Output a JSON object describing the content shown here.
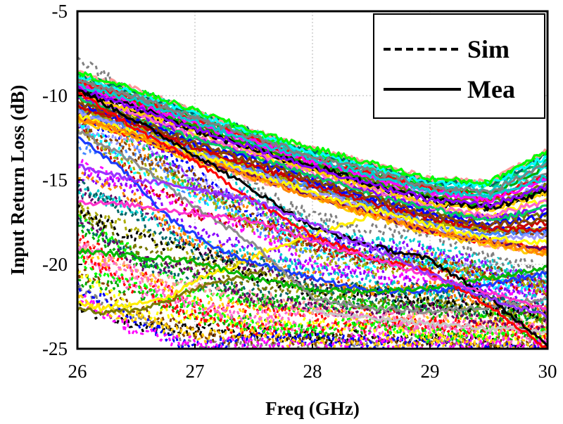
{
  "chart_data": {
    "type": "line",
    "title": "",
    "xlabel": "Freq (GHz)",
    "ylabel": "Input Return Loss (dB)",
    "xlim": [
      26,
      30
    ],
    "ylim": [
      -25,
      -5
    ],
    "x_ticks": [
      26,
      27,
      28,
      29,
      30
    ],
    "y_ticks": [
      -5,
      -10,
      -15,
      -20,
      -25
    ],
    "x_tick_labels": [
      "26",
      "27",
      "28",
      "29",
      "30"
    ],
    "y_tick_labels": [
      "-5",
      "-10",
      "-15",
      "-20",
      "-25"
    ],
    "grid": true,
    "legend": {
      "position": "top-right",
      "entries": [
        {
          "label": "Sim",
          "style": "dashed"
        },
        {
          "label": "Mea",
          "style": "solid"
        }
      ]
    },
    "colors": [
      "#ff0000",
      "#0000ff",
      "#00aa00",
      "#ff00ff",
      "#00cccc",
      "#ffcc00",
      "#000000",
      "#808080",
      "#8800ff",
      "#ff8800",
      "#00ff00",
      "#884400",
      "#ff66cc",
      "#006666",
      "#aaaa00",
      "#660066",
      "#4488ff",
      "#cc0000",
      "#00cc66",
      "#ff9999",
      "#9999ff",
      "#777700",
      "#00ffff",
      "#ffff00"
    ],
    "series": [
      {
        "name": "Mea upper band",
        "style": "solid",
        "count": 44,
        "x": [
          26,
          26.5,
          27,
          27.5,
          28,
          28.5,
          29,
          29.5,
          30
        ],
        "values_range_low": [
          -11.5,
          -12.6,
          -13.9,
          -15.0,
          -16.1,
          -17.2,
          -18.2,
          -19.0,
          -19.6
        ],
        "values_range_high": [
          -8.6,
          -9.6,
          -10.8,
          -12.0,
          -13.1,
          -14.0,
          -14.9,
          -15.1,
          -13.2
        ]
      },
      {
        "name": "Mea yellow",
        "style": "solid",
        "x": [
          26,
          26.2,
          26.5,
          26.8,
          27,
          27.3,
          27.6,
          27.9,
          28.2,
          28.5
        ],
        "values": [
          -22.3,
          -22.6,
          -22.3,
          -21.9,
          -20.9,
          -20.2,
          -19.2,
          -18.5,
          -17.8,
          -17.1
        ]
      },
      {
        "name": "Mea olive",
        "style": "solid",
        "x": [
          26,
          26.2,
          26.5,
          26.8,
          27,
          27.3,
          27.6
        ],
        "values": [
          -22.6,
          -22.9,
          -22.7,
          -22.1,
          -21.4,
          -20.9,
          -20.4
        ]
      },
      {
        "name": "Mea blue",
        "style": "solid",
        "x": [
          26,
          26.4,
          26.8,
          27.2,
          27.6,
          28,
          28.5,
          29,
          29.5,
          30
        ],
        "values": [
          -12.4,
          -14.5,
          -17.4,
          -19.1,
          -20.1,
          -20.8,
          -21.6,
          -21.6,
          -21.2,
          -20.5
        ]
      },
      {
        "name": "Mea green",
        "style": "solid",
        "x": [
          26,
          27,
          27.6,
          28,
          28.5,
          29,
          29.5,
          30
        ],
        "values": [
          -19.2,
          -19.8,
          -21.0,
          -21.5,
          -21.6,
          -21.4,
          -20.8,
          -20.2
        ]
      },
      {
        "name": "Mea gray",
        "style": "solid",
        "x": [
          26,
          26.5,
          27,
          27.5,
          28,
          28.5,
          29,
          29.5,
          30
        ],
        "values": [
          -12.1,
          -14.0,
          -16.6,
          -18.8,
          -22.0,
          -22.6,
          -22.8,
          -22.5,
          -22.0
        ]
      },
      {
        "name": "Mea silver",
        "style": "solid",
        "x": [
          28,
          28.5,
          29,
          29.5,
          30
        ],
        "values": [
          -22.8,
          -23.2,
          -23.5,
          -23.8,
          -24.0
        ]
      },
      {
        "name": "Mea red steep",
        "style": "solid",
        "x": [
          26,
          26.5,
          27,
          27.5,
          28,
          28.5,
          29,
          29.5,
          30
        ],
        "values": [
          -9.8,
          -12.0,
          -13.9,
          -16.2,
          -18.3,
          -19.6,
          -20.4,
          -22.4,
          -25.0
        ]
      },
      {
        "name": "Mea black steep",
        "style": "solid",
        "x": [
          26,
          26.5,
          27,
          27.5,
          28,
          28.5,
          29,
          29.5,
          30
        ],
        "values": [
          -9.6,
          -11.5,
          -13.5,
          -15.6,
          -17.8,
          -18.9,
          -19.7,
          -22.0,
          -24.7
        ]
      },
      {
        "name": "Mea magenta",
        "style": "solid",
        "x": [
          26,
          26.5,
          27,
          27.5,
          28,
          28.5,
          29,
          29.5,
          30
        ],
        "values": [
          -16.3,
          -16.5,
          -17.0,
          -17.4,
          -18.6,
          -19.6,
          -20.7,
          -21.7,
          -22.7
        ]
      },
      {
        "name": "Mea purple",
        "style": "solid",
        "x": [
          26,
          26.5,
          27,
          27.5,
          28,
          28.5,
          29,
          29.5,
          30
        ],
        "values": [
          -14.2,
          -15.0,
          -15.5,
          -16.2,
          -17.6,
          -19.0,
          -20.6,
          -22.0,
          -23.1
        ]
      },
      {
        "name": "Sim dashed",
        "style": "dashed",
        "count": 40,
        "x": [
          26,
          26.5,
          27,
          27.5,
          28,
          28.5,
          29,
          29.5,
          30
        ],
        "values_range_low": [
          -22.5,
          -24.0,
          -25.0,
          -25.0,
          -25.0,
          -25.0,
          -25.0,
          -25.0,
          -25.0
        ],
        "values_range_high": [
          -7.6,
          -9.5,
          -12.0,
          -14.5,
          -16.5,
          -17.5,
          -18.0,
          -19.0,
          -20.0
        ]
      }
    ]
  }
}
